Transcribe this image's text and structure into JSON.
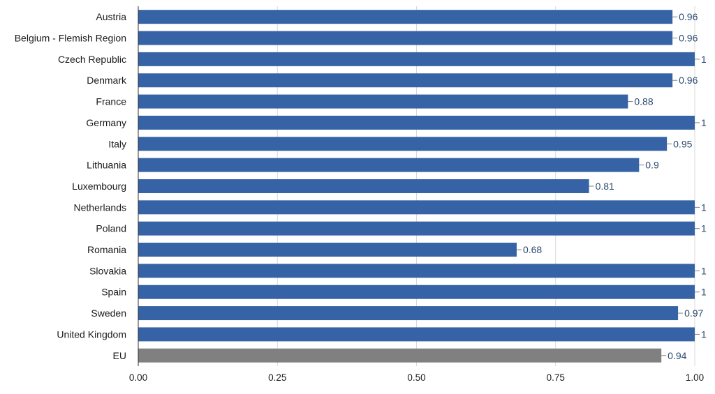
{
  "chart_data": {
    "type": "bar",
    "orientation": "horizontal",
    "categories": [
      "Austria",
      "Belgium - Flemish Region",
      "Czech Republic",
      "Denmark",
      "France",
      "Germany",
      "Italy",
      "Lithuania",
      "Luxembourg",
      "Netherlands",
      "Poland",
      "Romania",
      "Slovakia",
      "Spain",
      "Sweden",
      "United Kingdom",
      "EU"
    ],
    "values": [
      0.96,
      0.96,
      1,
      0.96,
      0.88,
      1,
      0.95,
      0.9,
      0.81,
      1,
      1,
      0.68,
      1,
      1,
      0.97,
      1,
      0.94
    ],
    "value_labels": [
      "0.96",
      "0.96",
      "1",
      "0.96",
      "0.88",
      "1",
      "0.95",
      "0.9",
      "0.81",
      "1",
      "1",
      "0.68",
      "1",
      "1",
      "0.97",
      "1",
      "0.94"
    ],
    "highlight_category": "EU",
    "colors": {
      "bar": "#3563a5",
      "highlight": "#808080"
    },
    "xlim": [
      0,
      1
    ],
    "xticks": [
      0,
      0.25,
      0.5,
      0.75,
      1
    ],
    "xtick_labels": [
      "0.00",
      "0.25",
      "0.50",
      "0.75",
      "1.00"
    ],
    "grid": true,
    "legend": "none",
    "title": "",
    "xlabel": "",
    "ylabel": ""
  }
}
